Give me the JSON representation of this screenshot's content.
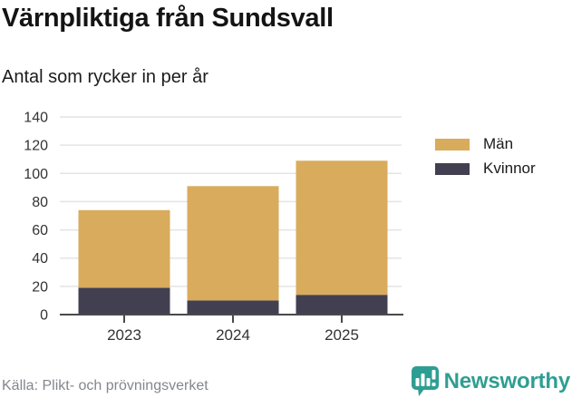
{
  "header": {
    "title": "Värnpliktiga från Sundsvall",
    "subtitle": "Antal som rycker in per år"
  },
  "chart_data": {
    "type": "bar",
    "stacked": true,
    "title": "Värnpliktiga från Sundsvall",
    "subtitle": "Antal som rycker in per år",
    "categories": [
      "2023",
      "2024",
      "2025"
    ],
    "series": [
      {
        "name": "Män",
        "values": [
          55,
          81,
          95
        ],
        "color": "#D9AB5C"
      },
      {
        "name": "Kvinnor",
        "values": [
          19,
          10,
          14
        ],
        "color": "#424050"
      }
    ],
    "stack_order_bottom_to_top": [
      "Kvinnor",
      "Män"
    ],
    "totals": [
      74,
      91,
      109
    ],
    "xlabel": "",
    "ylabel": "",
    "ylim": [
      0,
      140
    ],
    "ytick_step": 20,
    "yticks": [
      0,
      20,
      40,
      60,
      80,
      100,
      120,
      140
    ],
    "grid": true,
    "legend_position": "right"
  },
  "legend": {
    "items": [
      {
        "label": "Män"
      },
      {
        "label": "Kvinnor"
      }
    ]
  },
  "footer": {
    "source": "Källa: Plikt- och prövningsverket",
    "brand": "Newsworthy"
  },
  "colors": {
    "men": "#D9AB5C",
    "women": "#424050",
    "grid": "#E4E4E4",
    "axis": "#4A4A4A",
    "axis_text": "#333333",
    "title_text": "#141414",
    "source_text": "#83878C",
    "brand": "#2F9E92",
    "background": "#FFFFFF"
  }
}
